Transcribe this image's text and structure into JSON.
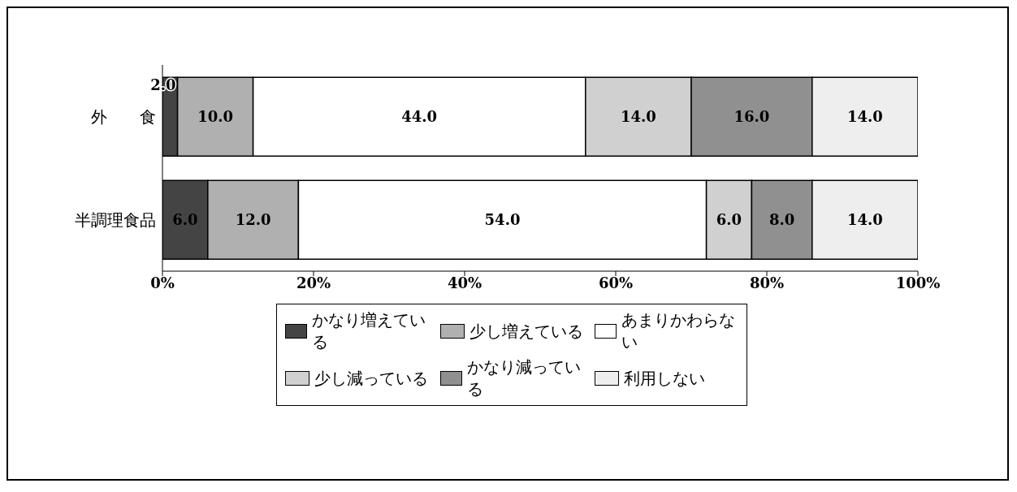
{
  "chart_data": {
    "type": "bar",
    "orientation": "horizontal",
    "stacked": true,
    "categories": [
      "外　　食",
      "半調理食品"
    ],
    "series": [
      {
        "name": "かなり増えている",
        "color": "#444444",
        "values": [
          2,
          6
        ],
        "value_labels": [
          "2.0",
          "6.0"
        ]
      },
      {
        "name": "少し増えている",
        "color": "#b0b0b0",
        "values": [
          10,
          12
        ],
        "value_labels": [
          "10.0",
          "12.0"
        ]
      },
      {
        "name": "あまりかわらない",
        "color": "#ffffff",
        "values": [
          44,
          54
        ],
        "value_labels": [
          "44.0",
          "54.0"
        ]
      },
      {
        "name": "少し減っている",
        "color": "#d0d0d0",
        "values": [
          14,
          6
        ],
        "value_labels": [
          "14.0",
          "6.0"
        ]
      },
      {
        "name": "かなり減っている",
        "color": "#909090",
        "values": [
          16,
          8
        ],
        "value_labels": [
          "16.0",
          "8.0"
        ]
      },
      {
        "name": "利用しない",
        "color": "#eeeeee",
        "values": [
          14,
          14
        ],
        "value_labels": [
          "14.0",
          "14.0"
        ]
      }
    ],
    "xlim": [
      0,
      100
    ],
    "xticks": [
      {
        "value": 0,
        "label": "0%"
      },
      {
        "value": 20,
        "label": "20%"
      },
      {
        "value": 40,
        "label": "40%"
      },
      {
        "value": 60,
        "label": "60%"
      },
      {
        "value": 80,
        "label": "80%"
      },
      {
        "value": 100,
        "label": "100%"
      }
    ],
    "grid": false,
    "legend": "bottom"
  }
}
